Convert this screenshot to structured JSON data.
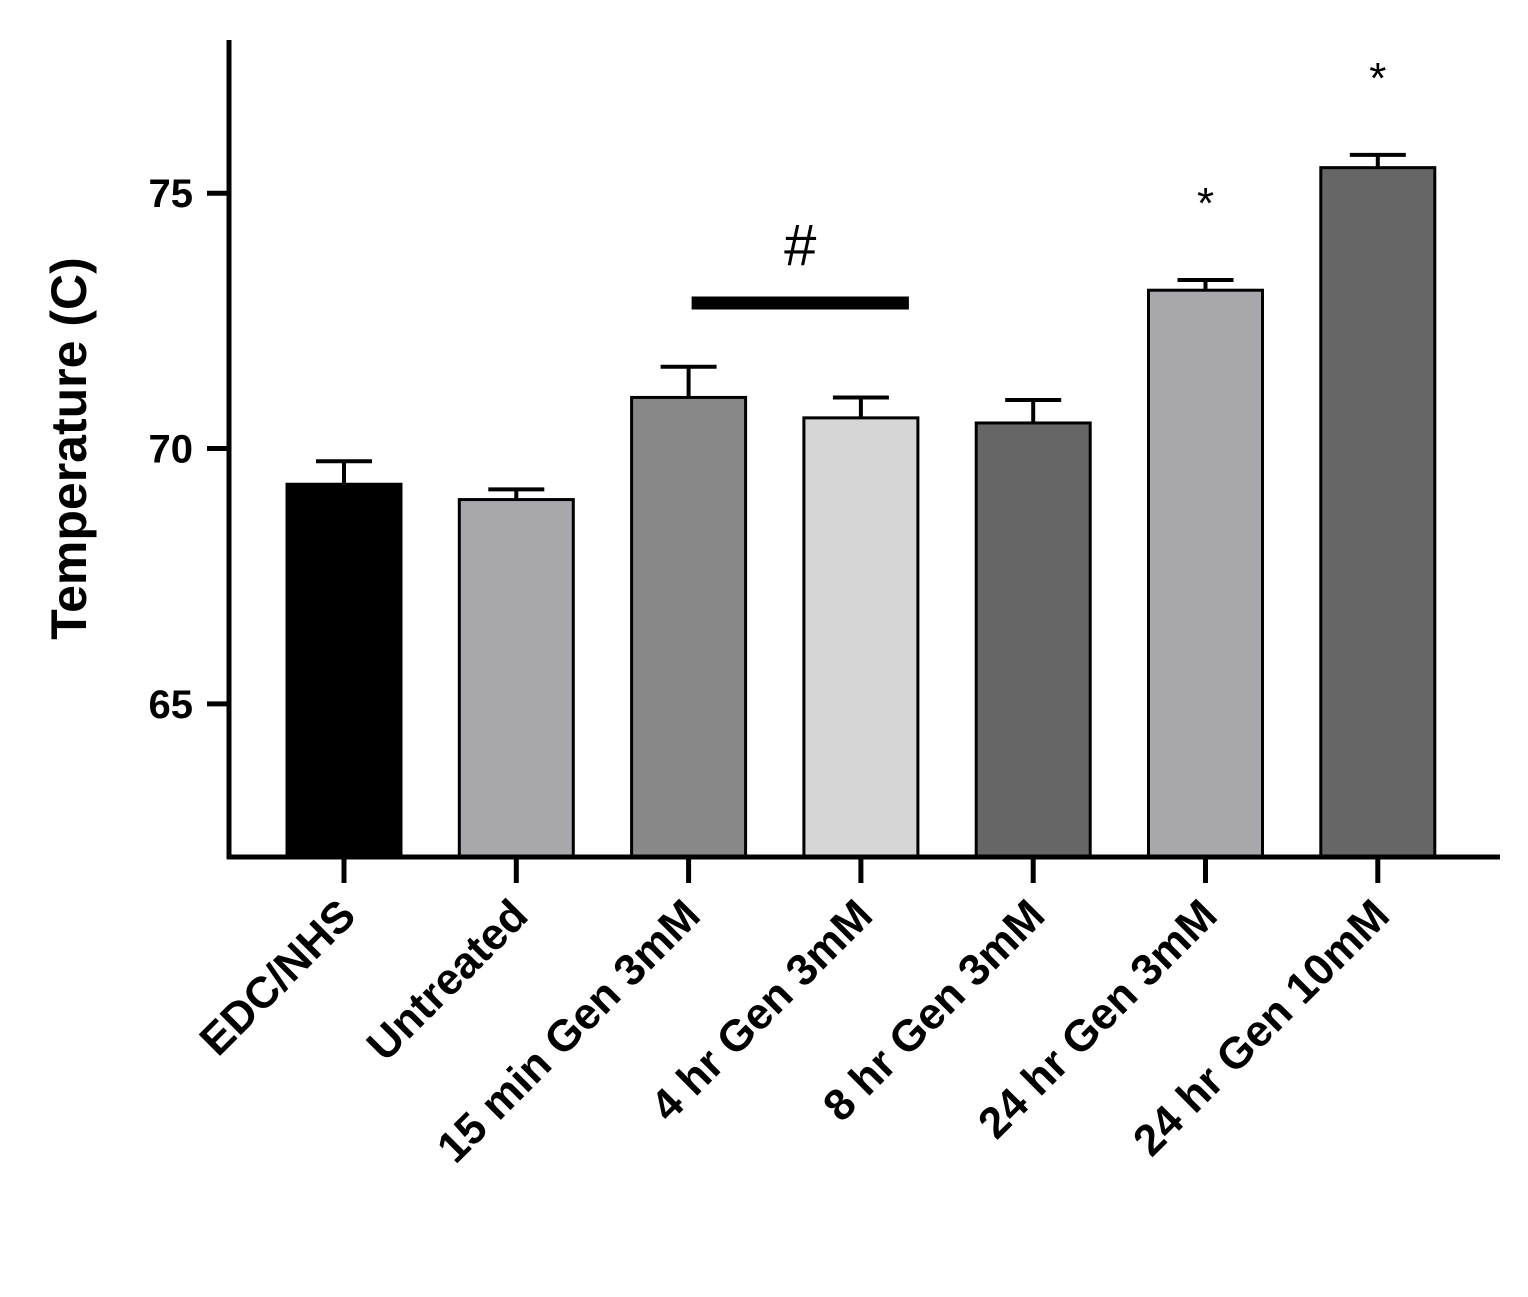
{
  "chart_data": {
    "type": "bar",
    "title": "",
    "xlabel": "",
    "ylabel": "Temperature (C)",
    "ylim": [
      62,
      78
    ],
    "yticks": [
      65,
      70,
      75
    ],
    "grid": false,
    "categories": [
      "EDC/NHS",
      "Untreated",
      "15 min Gen 3mM",
      "4 hr Gen 3mM",
      "8 hr Gen 3mM",
      "24 hr Gen 3mM",
      "24 hr Gen 10mM"
    ],
    "values": [
      69.3,
      69.0,
      71.0,
      70.6,
      70.5,
      73.1,
      75.5
    ],
    "errors": [
      0.45,
      0.2,
      0.6,
      0.4,
      0.45,
      0.2,
      0.25
    ],
    "bar_colors": [
      "#000000",
      "#a8a7ac",
      "#888888",
      "#d6d6d6",
      "#666666",
      "#a8a7ac",
      "#666666"
    ],
    "annotations": [
      {
        "text": "*",
        "category_index": 5
      },
      {
        "text": "*",
        "category_index": 6
      }
    ],
    "group_annotation": {
      "text": "#",
      "from_index": 2,
      "to_index": 3,
      "y": 72.85
    }
  }
}
